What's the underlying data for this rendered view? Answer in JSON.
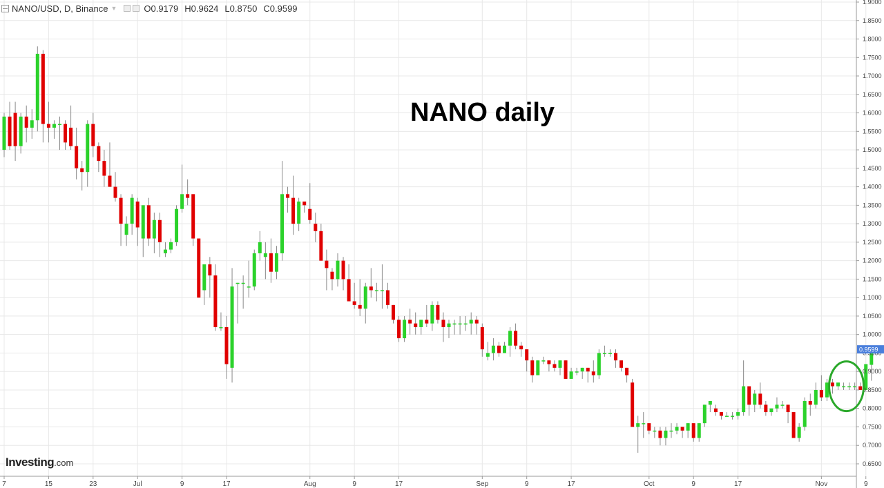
{
  "header": {
    "symbol": "NANO/USD, D, Binance",
    "open": "O0.9179",
    "high": "H0.9624",
    "low": "L0.8750",
    "close": "C0.9599"
  },
  "logo": {
    "brand": "Investing",
    "suffix": ".com"
  },
  "chart_data": {
    "type": "candlestick",
    "title": "NANO daily",
    "ylim": [
      0.63,
      1.91
    ],
    "y_ticks": [
      "1.9000",
      "1.8500",
      "1.8000",
      "1.7500",
      "1.7000",
      "1.6500",
      "1.6000",
      "1.5500",
      "1.5000",
      "1.4500",
      "1.4000",
      "1.3500",
      "1.3000",
      "1.2500",
      "1.2000",
      "1.1500",
      "1.1000",
      "1.0500",
      "1.0000",
      "0.9500",
      "0.9000",
      "0.8500",
      "0.8000",
      "0.7500",
      "0.7000",
      "0.6500"
    ],
    "x_ticks": [
      {
        "label": "7",
        "index": 0
      },
      {
        "label": "15",
        "index": 8
      },
      {
        "label": "23",
        "index": 16
      },
      {
        "label": "Jul",
        "index": 24
      },
      {
        "label": "9",
        "index": 32
      },
      {
        "label": "17",
        "index": 40
      },
      {
        "label": "Aug",
        "index": 55
      },
      {
        "label": "9",
        "index": 63
      },
      {
        "label": "17",
        "index": 71
      },
      {
        "label": "Sep",
        "index": 86
      },
      {
        "label": "9",
        "index": 94
      },
      {
        "label": "17",
        "index": 102
      },
      {
        "label": "Oct",
        "index": 116
      },
      {
        "label": "9",
        "index": 124
      },
      {
        "label": "17",
        "index": 132
      },
      {
        "label": "Nov",
        "index": 147
      },
      {
        "label": "9",
        "index": 155
      }
    ],
    "last_price": "0.9599",
    "highlight_index": 151,
    "colors": {
      "up": "#2bd22b",
      "down": "#e00000",
      "wick": "#888888",
      "grid": "#e8e8e8",
      "price_tag": "#4a7fdc",
      "circle": "#2aa82a"
    },
    "candles": [
      [
        1.5,
        1.6,
        1.48,
        1.59
      ],
      [
        1.59,
        1.63,
        1.5,
        1.51
      ],
      [
        1.6,
        1.63,
        1.47,
        1.51
      ],
      [
        1.51,
        1.6,
        1.49,
        1.59
      ],
      [
        1.59,
        1.62,
        1.52,
        1.56
      ],
      [
        1.56,
        1.61,
        1.53,
        1.58
      ],
      [
        1.58,
        1.78,
        1.55,
        1.76
      ],
      [
        1.76,
        1.77,
        1.52,
        1.57
      ],
      [
        1.57,
        1.63,
        1.52,
        1.56
      ],
      [
        1.56,
        1.58,
        1.53,
        1.57
      ],
      [
        1.57,
        1.59,
        1.5,
        1.57
      ],
      [
        1.57,
        1.58,
        1.5,
        1.52
      ],
      [
        1.56,
        1.62,
        1.5,
        1.51
      ],
      [
        1.51,
        1.56,
        1.42,
        1.45
      ],
      [
        1.45,
        1.47,
        1.39,
        1.44
      ],
      [
        1.44,
        1.58,
        1.4,
        1.57
      ],
      [
        1.57,
        1.6,
        1.48,
        1.51
      ],
      [
        1.51,
        1.52,
        1.44,
        1.47
      ],
      [
        1.47,
        1.5,
        1.4,
        1.43
      ],
      [
        1.43,
        1.52,
        1.4,
        1.4
      ],
      [
        1.4,
        1.44,
        1.36,
        1.37
      ],
      [
        1.37,
        1.38,
        1.24,
        1.3
      ],
      [
        1.27,
        1.32,
        1.24,
        1.3
      ],
      [
        1.3,
        1.38,
        1.27,
        1.37
      ],
      [
        1.36,
        1.37,
        1.24,
        1.29
      ],
      [
        1.26,
        1.35,
        1.21,
        1.35
      ],
      [
        1.35,
        1.37,
        1.24,
        1.26
      ],
      [
        1.26,
        1.33,
        1.22,
        1.31
      ],
      [
        1.31,
        1.33,
        1.21,
        1.25
      ],
      [
        1.22,
        1.25,
        1.21,
        1.23
      ],
      [
        1.23,
        1.26,
        1.22,
        1.25
      ],
      [
        1.25,
        1.35,
        1.24,
        1.34
      ],
      [
        1.34,
        1.46,
        1.33,
        1.38
      ],
      [
        1.38,
        1.42,
        1.35,
        1.37
      ],
      [
        1.38,
        1.38,
        1.24,
        1.26
      ],
      [
        1.26,
        1.26,
        1.1,
        1.1
      ],
      [
        1.12,
        1.19,
        1.08,
        1.19
      ],
      [
        1.19,
        1.21,
        1.1,
        1.16
      ],
      [
        1.16,
        1.19,
        1.01,
        1.02
      ],
      [
        1.02,
        1.06,
        1.01,
        1.02
      ],
      [
        1.02,
        1.05,
        0.88,
        0.92
      ],
      [
        0.91,
        1.18,
        0.87,
        1.13
      ],
      [
        1.14,
        1.14,
        1.03,
        1.14
      ],
      [
        1.14,
        1.16,
        1.07,
        1.14
      ],
      [
        1.13,
        1.2,
        1.1,
        1.13
      ],
      [
        1.13,
        1.23,
        1.12,
        1.22
      ],
      [
        1.22,
        1.28,
        1.2,
        1.25
      ],
      [
        1.21,
        1.25,
        1.15,
        1.22
      ],
      [
        1.22,
        1.26,
        1.14,
        1.17
      ],
      [
        1.17,
        1.24,
        1.15,
        1.22
      ],
      [
        1.22,
        1.47,
        1.2,
        1.38
      ],
      [
        1.38,
        1.4,
        1.33,
        1.37
      ],
      [
        1.37,
        1.43,
        1.27,
        1.3
      ],
      [
        1.3,
        1.37,
        1.28,
        1.36
      ],
      [
        1.36,
        1.35,
        1.33,
        1.35
      ],
      [
        1.34,
        1.41,
        1.3,
        1.31
      ],
      [
        1.3,
        1.33,
        1.25,
        1.28
      ],
      [
        1.28,
        1.3,
        1.2,
        1.2
      ],
      [
        1.2,
        1.23,
        1.12,
        1.18
      ],
      [
        1.17,
        1.18,
        1.12,
        1.15
      ],
      [
        1.15,
        1.22,
        1.13,
        1.2
      ],
      [
        1.2,
        1.21,
        1.12,
        1.15
      ],
      [
        1.15,
        1.19,
        1.09,
        1.09
      ],
      [
        1.09,
        1.14,
        1.07,
        1.08
      ],
      [
        1.08,
        1.15,
        1.05,
        1.07
      ],
      [
        1.07,
        1.14,
        1.03,
        1.13
      ],
      [
        1.13,
        1.18,
        1.1,
        1.12
      ],
      [
        1.12,
        1.14,
        1.09,
        1.12
      ],
      [
        1.12,
        1.19,
        1.07,
        1.12
      ],
      [
        1.12,
        1.14,
        1.07,
        1.08
      ],
      [
        1.08,
        1.08,
        1.03,
        1.04
      ],
      [
        1.04,
        1.05,
        0.98,
        0.99
      ],
      [
        0.99,
        1.05,
        0.98,
        1.04
      ],
      [
        1.04,
        1.07,
        1.0,
        1.03
      ],
      [
        1.03,
        1.06,
        1.0,
        1.02
      ],
      [
        1.02,
        1.04,
        1.0,
        1.04
      ],
      [
        1.04,
        1.08,
        1.02,
        1.03
      ],
      [
        1.03,
        1.09,
        1.01,
        1.08
      ],
      [
        1.08,
        1.09,
        1.03,
        1.04
      ],
      [
        1.04,
        1.06,
        0.98,
        1.02
      ],
      [
        1.02,
        1.04,
        0.99,
        1.03
      ],
      [
        1.03,
        1.04,
        1.0,
        1.03
      ],
      [
        1.03,
        1.05,
        1.0,
        1.03
      ],
      [
        1.03,
        1.05,
        1.01,
        1.03
      ],
      [
        1.03,
        1.06,
        1.0,
        1.04
      ],
      [
        1.04,
        1.05,
        1.0,
        1.03
      ],
      [
        1.02,
        1.03,
        0.94,
        0.96
      ],
      [
        0.94,
        0.98,
        0.93,
        0.95
      ],
      [
        0.95,
        0.99,
        0.93,
        0.97
      ],
      [
        0.97,
        0.98,
        0.94,
        0.95
      ],
      [
        0.95,
        0.98,
        0.95,
        0.97
      ],
      [
        0.97,
        1.02,
        0.94,
        1.01
      ],
      [
        1.01,
        1.03,
        0.96,
        0.97
      ],
      [
        0.97,
        0.98,
        0.94,
        0.96
      ],
      [
        0.96,
        0.96,
        0.9,
        0.93
      ],
      [
        0.93,
        0.94,
        0.87,
        0.89
      ],
      [
        0.89,
        0.93,
        0.89,
        0.93
      ],
      [
        0.93,
        0.94,
        0.92,
        0.93
      ],
      [
        0.93,
        0.93,
        0.9,
        0.92
      ],
      [
        0.92,
        0.93,
        0.9,
        0.91
      ],
      [
        0.91,
        0.93,
        0.89,
        0.93
      ],
      [
        0.93,
        0.93,
        0.88,
        0.88
      ],
      [
        0.88,
        0.91,
        0.88,
        0.9
      ],
      [
        0.9,
        0.91,
        0.89,
        0.9
      ],
      [
        0.9,
        0.91,
        0.88,
        0.91
      ],
      [
        0.91,
        0.91,
        0.87,
        0.9
      ],
      [
        0.9,
        0.93,
        0.87,
        0.89
      ],
      [
        0.89,
        0.96,
        0.88,
        0.95
      ],
      [
        0.95,
        0.97,
        0.94,
        0.95
      ],
      [
        0.95,
        0.96,
        0.94,
        0.95
      ],
      [
        0.95,
        0.96,
        0.91,
        0.93
      ],
      [
        0.93,
        0.93,
        0.9,
        0.91
      ],
      [
        0.91,
        0.91,
        0.87,
        0.89
      ],
      [
        0.87,
        0.88,
        0.75,
        0.75
      ],
      [
        0.75,
        0.78,
        0.68,
        0.76
      ],
      [
        0.76,
        0.79,
        0.72,
        0.76
      ],
      [
        0.76,
        0.76,
        0.73,
        0.74
      ],
      [
        0.74,
        0.75,
        0.72,
        0.74
      ],
      [
        0.74,
        0.75,
        0.7,
        0.72
      ],
      [
        0.72,
        0.75,
        0.7,
        0.74
      ],
      [
        0.74,
        0.76,
        0.72,
        0.74
      ],
      [
        0.74,
        0.76,
        0.73,
        0.75
      ],
      [
        0.75,
        0.75,
        0.72,
        0.74
      ],
      [
        0.74,
        0.76,
        0.72,
        0.76
      ],
      [
        0.76,
        0.76,
        0.71,
        0.72
      ],
      [
        0.72,
        0.76,
        0.71,
        0.76
      ],
      [
        0.76,
        0.81,
        0.75,
        0.81
      ],
      [
        0.81,
        0.82,
        0.79,
        0.82
      ],
      [
        0.8,
        0.81,
        0.78,
        0.79
      ],
      [
        0.79,
        0.79,
        0.77,
        0.78
      ],
      [
        0.78,
        0.79,
        0.78,
        0.78
      ],
      [
        0.78,
        0.79,
        0.77,
        0.78
      ],
      [
        0.78,
        0.8,
        0.77,
        0.79
      ],
      [
        0.79,
        0.93,
        0.78,
        0.86
      ],
      [
        0.86,
        0.86,
        0.78,
        0.81
      ],
      [
        0.81,
        0.85,
        0.79,
        0.84
      ],
      [
        0.84,
        0.87,
        0.8,
        0.81
      ],
      [
        0.81,
        0.82,
        0.78,
        0.79
      ],
      [
        0.79,
        0.8,
        0.78,
        0.8
      ],
      [
        0.8,
        0.83,
        0.79,
        0.81
      ],
      [
        0.81,
        0.82,
        0.8,
        0.81
      ],
      [
        0.81,
        0.81,
        0.76,
        0.79
      ],
      [
        0.79,
        0.79,
        0.73,
        0.72
      ],
      [
        0.72,
        0.76,
        0.71,
        0.75
      ],
      [
        0.75,
        0.83,
        0.74,
        0.82
      ],
      [
        0.82,
        0.84,
        0.78,
        0.81
      ],
      [
        0.81,
        0.87,
        0.8,
        0.85
      ],
      [
        0.85,
        0.89,
        0.82,
        0.83
      ],
      [
        0.83,
        0.88,
        0.82,
        0.87
      ],
      [
        0.87,
        0.88,
        0.84,
        0.86
      ],
      [
        0.86,
        0.87,
        0.85,
        0.87
      ],
      [
        0.86,
        0.87,
        0.85,
        0.86
      ],
      [
        0.86,
        0.87,
        0.85,
        0.86
      ],
      [
        0.86,
        0.87,
        0.85,
        0.86
      ],
      [
        0.86,
        0.87,
        0.85,
        0.85
      ],
      [
        0.85,
        0.92,
        0.85,
        0.92
      ],
      [
        0.918,
        0.962,
        0.875,
        0.96
      ]
    ]
  }
}
